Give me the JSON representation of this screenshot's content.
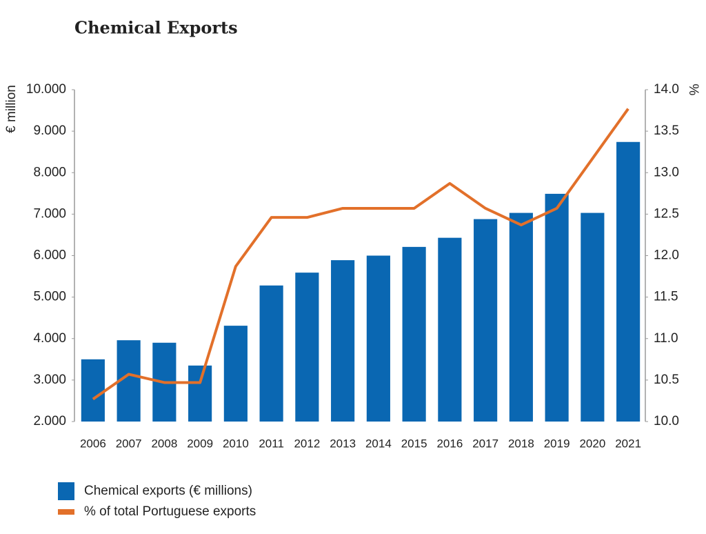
{
  "chart_data": {
    "type": "bar-line",
    "title": "Chemical Exports",
    "y_label": "€ million",
    "y2_label": "%",
    "categories": [
      "2006",
      "2007",
      "2008",
      "2009",
      "2010",
      "2011",
      "2012",
      "2013",
      "2014",
      "2015",
      "2016",
      "2017",
      "2018",
      "2019",
      "2020",
      "2021"
    ],
    "series": [
      {
        "name": "Chemical exports (€ millions)",
        "type": "bar",
        "color": "#0a67b2",
        "values": [
          3500,
          3960,
          3900,
          3350,
          4310,
          5280,
          5590,
          5890,
          6000,
          6210,
          6430,
          6880,
          7030,
          7490,
          7030,
          8740
        ]
      },
      {
        "name": "% of total Portuguese exports",
        "type": "line",
        "color": "#e2702a",
        "axis": "y2",
        "values": [
          10.27,
          10.57,
          10.47,
          10.47,
          11.87,
          12.46,
          12.46,
          12.57,
          12.57,
          12.57,
          12.87,
          12.57,
          12.37,
          12.57,
          13.17,
          13.77
        ]
      }
    ],
    "ylim": [
      2000,
      10000
    ],
    "yticks": [
      {
        "value": 2000,
        "label": "2.000"
      },
      {
        "value": 3000,
        "label": "3.000"
      },
      {
        "value": 4000,
        "label": "4.000"
      },
      {
        "value": 5000,
        "label": "5.000"
      },
      {
        "value": 6000,
        "label": "6.000"
      },
      {
        "value": 7000,
        "label": "7.000"
      },
      {
        "value": 8000,
        "label": "8.000"
      },
      {
        "value": 9000,
        "label": "9.000"
      },
      {
        "value": 10000,
        "label": "10.000"
      }
    ],
    "y2lim": [
      10,
      14
    ],
    "y2ticks": [
      {
        "value": 10,
        "label": "10.0"
      },
      10.5,
      {
        "value": 11,
        "label": "11.0"
      },
      11.5,
      {
        "value": 12,
        "label": "12.0"
      },
      12.5,
      {
        "value": 13,
        "label": "13.0"
      },
      13.5,
      {
        "value": 14,
        "label": "14.0"
      }
    ],
    "grid": false
  }
}
